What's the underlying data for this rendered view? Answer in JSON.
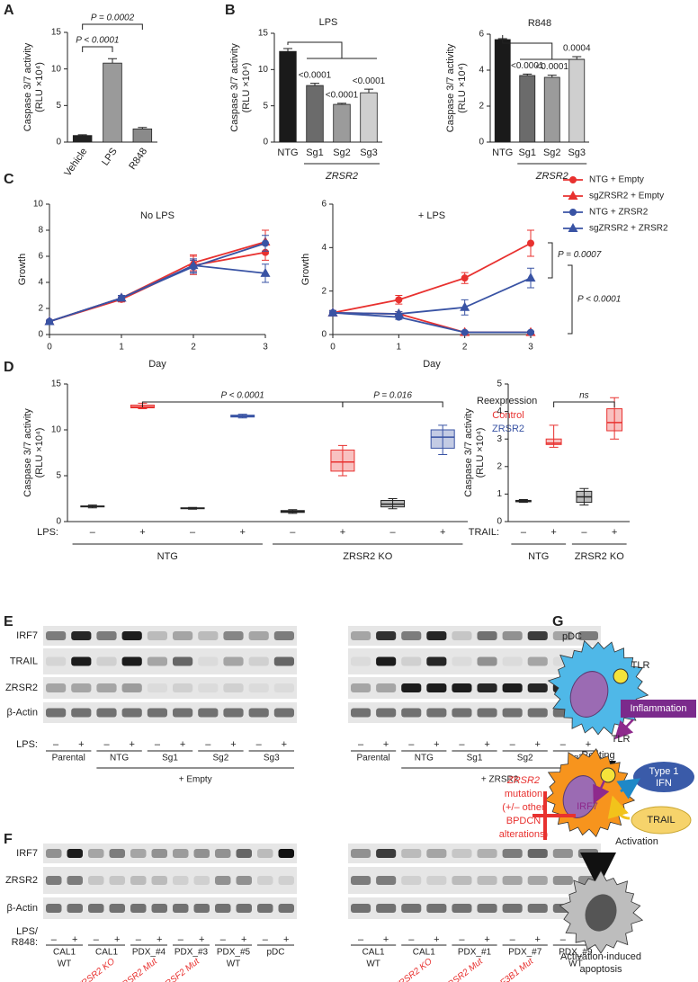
{
  "panel_labels": [
    "A",
    "B",
    "C",
    "D",
    "E",
    "F",
    "G"
  ],
  "chart_data": [
    {
      "type": "bar",
      "ylabel": [
        "Caspase 3/7 activity",
        "(RLU ×10⁴)"
      ],
      "categories": [
        "Vehicle",
        "LPS",
        "R848"
      ],
      "values": [
        0.9,
        10.8,
        1.8
      ],
      "errors": [
        0.1,
        0.6,
        0.2
      ],
      "colors": [
        "#222222",
        "#9a9a9a",
        "#8a8a8a"
      ],
      "ylim": [
        0,
        15
      ],
      "yticks": [
        0,
        5,
        10,
        15
      ],
      "annotations": [
        "P < 0.0001",
        "P = 0.0002"
      ]
    },
    {
      "type": "bar",
      "title": "LPS",
      "ylabel": [
        "Caspase 3/7 activity",
        "(RLU ×10⁴)"
      ],
      "categories": [
        "NTG",
        "Sg1",
        "Sg2",
        "Sg3"
      ],
      "values": [
        12.5,
        7.8,
        5.2,
        6.8
      ],
      "errors": [
        0.4,
        0.3,
        0.15,
        0.5
      ],
      "colors": [
        "#1a1a1a",
        "#6b6b6b",
        "#9b9b9b",
        "#cfcfcf"
      ],
      "ylim": [
        0,
        15
      ],
      "yticks": [
        0,
        5,
        10,
        15
      ],
      "group_label": "ZRSR2",
      "annotations": [
        "<0.0001",
        "<0.0001",
        "<0.0001"
      ]
    },
    {
      "type": "bar",
      "title": "R848",
      "ylabel": [
        "Caspase 3/7 activity",
        "(RLU ×10⁴)"
      ],
      "categories": [
        "NTG",
        "Sg1",
        "Sg2",
        "Sg3"
      ],
      "values": [
        5.7,
        3.7,
        3.6,
        4.6
      ],
      "errors": [
        0.05,
        0.08,
        0.12,
        0.15
      ],
      "colors": [
        "#1a1a1a",
        "#6b6b6b",
        "#9b9b9b",
        "#cfcfcf"
      ],
      "ylim": [
        0,
        6
      ],
      "yticks": [
        0,
        2,
        4,
        6
      ],
      "group_label": "ZRSR2",
      "annotations": [
        "<0.0001",
        "<0.0001",
        "0.0004"
      ]
    },
    {
      "type": "line",
      "title": "No LPS",
      "xlabel": "Day",
      "ylabel": [
        "Growth"
      ],
      "x": [
        0,
        1,
        2,
        3
      ],
      "xlim": [
        0,
        3
      ],
      "xticks": [
        0,
        1,
        2,
        3
      ],
      "ylim": [
        0,
        10
      ],
      "yticks": [
        0,
        2,
        4,
        6,
        8,
        10
      ],
      "series": [
        {
          "color": "#e8312f",
          "marker": "circle",
          "values": [
            1,
            2.7,
            5.3,
            6.3
          ],
          "errors": [
            0.1,
            0.2,
            0.7,
            0.6
          ]
        },
        {
          "color": "#e8312f",
          "marker": "triangle",
          "values": [
            1,
            2.8,
            5.5,
            7.1
          ],
          "errors": [
            0.1,
            0.2,
            0.6,
            0.9
          ]
        },
        {
          "color": "#3953a4",
          "marker": "circle",
          "values": [
            1,
            2.8,
            5.2,
            7.0
          ],
          "errors": [
            0.1,
            0.2,
            0.5,
            0.6
          ]
        },
        {
          "color": "#3953a4",
          "marker": "triangle",
          "values": [
            1,
            2.8,
            5.3,
            4.7
          ],
          "errors": [
            0.1,
            0.2,
            0.5,
            0.7
          ]
        }
      ]
    },
    {
      "type": "line",
      "title": "+ LPS",
      "xlabel": "Day",
      "ylabel": [
        "Growth"
      ],
      "x": [
        0,
        1,
        2,
        3
      ],
      "xlim": [
        0,
        3
      ],
      "xticks": [
        0,
        1,
        2,
        3
      ],
      "ylim": [
        0,
        6
      ],
      "yticks": [
        0,
        2,
        4,
        6
      ],
      "legend": "right",
      "series": [
        {
          "name": "NTG + Empty",
          "color": "#e8312f",
          "marker": "circle",
          "values": [
            1,
            1.6,
            2.6,
            4.2
          ],
          "errors": [
            0.1,
            0.2,
            0.25,
            0.6
          ]
        },
        {
          "name": "sgZRSR2 + Empty",
          "color": "#e8312f",
          "marker": "triangle",
          "values": [
            1,
            0.95,
            0.1,
            0.1
          ],
          "errors": [
            0.1,
            0.1,
            0.05,
            0.05
          ]
        },
        {
          "name": "NTG + ZRSR2",
          "color": "#3953a4",
          "marker": "circle",
          "values": [
            1,
            0.8,
            0.1,
            0.1
          ],
          "errors": [
            0.1,
            0.1,
            0.05,
            0.05
          ]
        },
        {
          "name": "sgZRSR2 + ZRSR2",
          "color": "#3953a4",
          "marker": "triangle",
          "values": [
            1,
            0.95,
            1.25,
            2.6
          ],
          "errors": [
            0.1,
            0.1,
            0.35,
            0.45
          ]
        }
      ],
      "annotations": [
        "P = 0.0007",
        "P < 0.0001"
      ]
    },
    {
      "type": "box",
      "ylabel": [
        "Caspase 3/7 activity",
        "(RLU ×10⁴)"
      ],
      "x_label": "LPS:",
      "categories": [
        "–",
        "+",
        "–",
        "+",
        "–",
        "+",
        "–",
        "+"
      ],
      "groups": [
        "NTG",
        "ZRSR2 KO"
      ],
      "colors": [
        "#222222",
        "#e8312f",
        "#222222",
        "#3953a4",
        "#222222",
        "#e8312f",
        "#222222",
        "#3953a4"
      ],
      "min": [
        1.5,
        12.3,
        1.35,
        11.3,
        0.9,
        5.0,
        1.4,
        7.3
      ],
      "q1": [
        1.6,
        12.4,
        1.4,
        11.4,
        1.0,
        5.5,
        1.6,
        8.0
      ],
      "median": [
        1.65,
        12.5,
        1.45,
        11.5,
        1.1,
        6.5,
        1.9,
        9.2
      ],
      "q3": [
        1.7,
        12.7,
        1.5,
        11.6,
        1.2,
        7.8,
        2.3,
        10.0
      ],
      "max": [
        1.8,
        12.9,
        1.55,
        11.7,
        1.3,
        8.3,
        2.5,
        10.5
      ],
      "ylim": [
        0,
        15
      ],
      "yticks": [
        0,
        5,
        10,
        15
      ],
      "legend": {
        "title": "Reexpression",
        "entries": [
          {
            "name": "Control",
            "color": "#e8312f"
          },
          {
            "name": "ZRSR2",
            "color": "#3953a4"
          }
        ]
      },
      "annotations": [
        "P < 0.0001",
        "P = 0.016"
      ]
    },
    {
      "type": "box",
      "ylabel": [
        "Caspase 3/7 activity",
        "(RLU ×10⁴)"
      ],
      "x_label": "TRAIL:",
      "categories": [
        "–",
        "+",
        "–",
        "+"
      ],
      "groups": [
        "NTG",
        "ZRSR2 KO"
      ],
      "colors": [
        "#222222",
        "#e8312f",
        "#222222",
        "#e8312f"
      ],
      "min": [
        0.7,
        2.7,
        0.6,
        3.0
      ],
      "q1": [
        0.72,
        2.8,
        0.7,
        3.3
      ],
      "median": [
        0.75,
        2.85,
        0.9,
        3.6
      ],
      "q3": [
        0.77,
        3.0,
        1.1,
        4.1
      ],
      "max": [
        0.8,
        3.5,
        1.2,
        4.5
      ],
      "ylim": [
        0,
        5
      ],
      "yticks": [
        0,
        1,
        2,
        3,
        4,
        5
      ],
      "annotations": [
        "ns"
      ]
    }
  ],
  "blot_e": {
    "row_labels": [
      "IRF7",
      "TRAIL",
      "ZRSR2",
      "β-Actin"
    ],
    "lps_label": "LPS:",
    "signs": [
      "–",
      "+"
    ],
    "groups": [
      "Parental",
      "NTG",
      "Sg1",
      "Sg2",
      "Sg3"
    ],
    "conditions": [
      "+ Empty",
      "+ ZRSR2"
    ]
  },
  "blot_f": {
    "row_labels": [
      "IRF7",
      "ZRSR2",
      "β-Actin"
    ],
    "lps_label": [
      "LPS/",
      "R848:"
    ],
    "signs": [
      "–",
      "+"
    ],
    "left": [
      {
        "name": "CAL1",
        "note": "WT"
      },
      {
        "name": "CAL1",
        "note": "ZRSR2 KO",
        "note_color": "#e8312f"
      },
      {
        "name": "PDX_#4",
        "note": "ZRSR2 Mut",
        "note_color": "#e8312f"
      },
      {
        "name": "PDX_#3",
        "note": "SRSF2 Mut",
        "note_color": "#e8312f"
      },
      {
        "name": "PDX_#5",
        "note": "WT"
      },
      {
        "name": "pDC"
      }
    ],
    "right": [
      {
        "name": "CAL1",
        "note": "WT"
      },
      {
        "name": "CAL1",
        "note": "ZRSR2 KO",
        "note_color": "#e8312f"
      },
      {
        "name": "PDX_#1",
        "note": "ZRSR2 Mut",
        "note_color": "#e8312f"
      },
      {
        "name": "PDX_#7",
        "note": "SF3B1 Mut",
        "note_color": "#e8312f"
      },
      {
        "name": "PDX_#9",
        "note": "WT"
      }
    ]
  },
  "diagram": {
    "pdc": "pDC",
    "tlr": "TLR",
    "resting": "Resting",
    "inflammation": "Inflammation",
    "tlr_active": "TLR",
    "irf7": "IRF7",
    "ifn": [
      "Type 1",
      "IFN"
    ],
    "trail": "TRAIL",
    "mutation": [
      "ZRSR2",
      "mutation",
      "(+/– other",
      "BPDCN",
      "alterations)"
    ],
    "activation": "Activation",
    "apoptosis": [
      "Activation-induced",
      "apoptosis"
    ]
  }
}
